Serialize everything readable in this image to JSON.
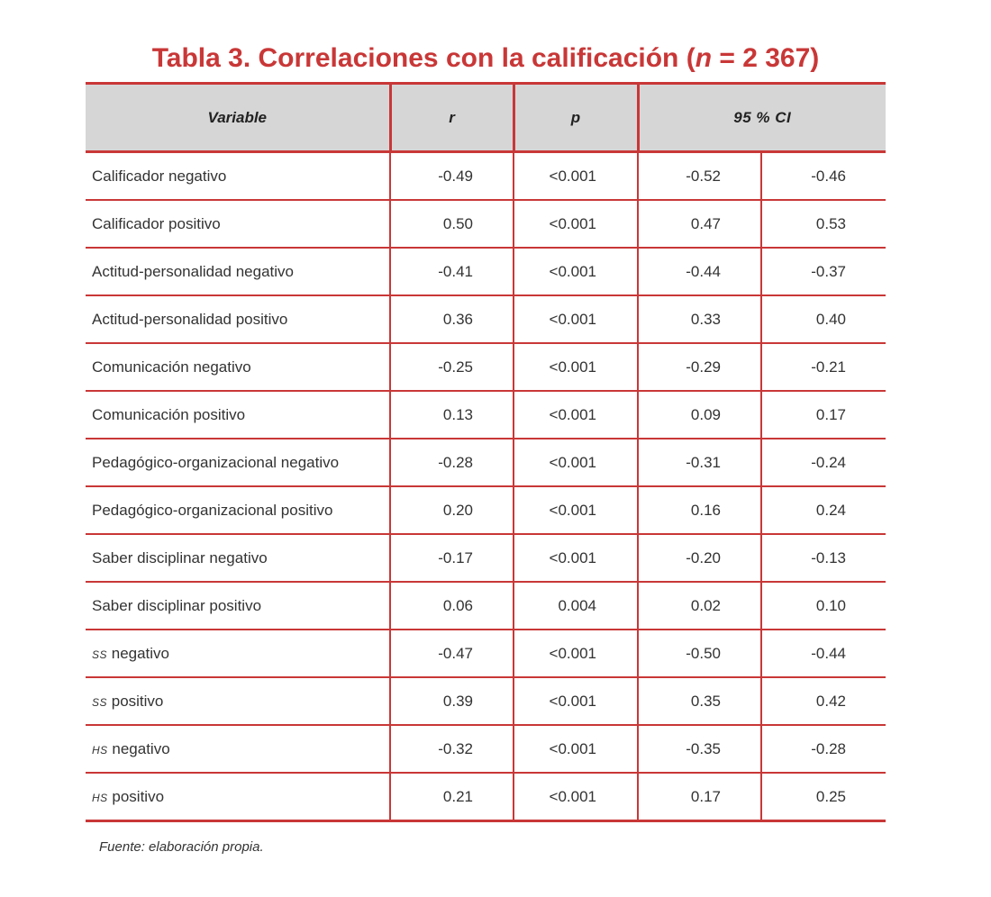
{
  "title": {
    "prefix": "Tabla 3. Correlaciones con la calificación (",
    "n_symbol": "n",
    "suffix": " = 2 367)"
  },
  "table": {
    "headers": {
      "variable": "Variable",
      "r": "r",
      "p": "p",
      "ci": "95 % CI"
    },
    "rows": [
      {
        "abbr": "",
        "label": "Calificador negativo",
        "r": "-0.49",
        "p": "<0.001",
        "ci_low": "-0.52",
        "ci_high": "-0.46"
      },
      {
        "abbr": "",
        "label": "Calificador positivo",
        "r": "0.50",
        "p": "<0.001",
        "ci_low": "0.47",
        "ci_high": "0.53"
      },
      {
        "abbr": "",
        "label": "Actitud-personalidad negativo",
        "r": "-0.41",
        "p": "<0.001",
        "ci_low": "-0.44",
        "ci_high": "-0.37"
      },
      {
        "abbr": "",
        "label": "Actitud-personalidad positivo",
        "r": "0.36",
        "p": "<0.001",
        "ci_low": "0.33",
        "ci_high": "0.40"
      },
      {
        "abbr": "",
        "label": "Comunicación negativo",
        "r": "-0.25",
        "p": "<0.001",
        "ci_low": "-0.29",
        "ci_high": "-0.21"
      },
      {
        "abbr": "",
        "label": "Comunicación positivo",
        "r": "0.13",
        "p": "<0.001",
        "ci_low": "0.09",
        "ci_high": "0.17"
      },
      {
        "abbr": "",
        "label": "Pedagógico-organizacional negativo",
        "r": "-0.28",
        "p": "<0.001",
        "ci_low": "-0.31",
        "ci_high": "-0.24"
      },
      {
        "abbr": "",
        "label": "Pedagógico-organizacional positivo",
        "r": "0.20",
        "p": "<0.001",
        "ci_low": "0.16",
        "ci_high": "0.24"
      },
      {
        "abbr": "",
        "label": "Saber disciplinar negativo",
        "r": "-0.17",
        "p": "<0.001",
        "ci_low": "-0.20",
        "ci_high": "-0.13"
      },
      {
        "abbr": "",
        "label": "Saber disciplinar positivo",
        "r": "0.06",
        "p": "0.004",
        "ci_low": "0.02",
        "ci_high": "0.10"
      },
      {
        "abbr": "SS",
        "label": " negativo",
        "r": "-0.47",
        "p": "<0.001",
        "ci_low": "-0.50",
        "ci_high": "-0.44"
      },
      {
        "abbr": "SS",
        "label": " positivo",
        "r": "0.39",
        "p": "<0.001",
        "ci_low": "0.35",
        "ci_high": "0.42"
      },
      {
        "abbr": "HS",
        "label": " negativo",
        "r": "-0.32",
        "p": "<0.001",
        "ci_low": "-0.35",
        "ci_high": "-0.28"
      },
      {
        "abbr": "HS",
        "label": " positivo",
        "r": "0.21",
        "p": "<0.001",
        "ci_low": "0.17",
        "ci_high": "0.25"
      }
    ]
  },
  "source": "Fuente: elaboración propia.",
  "colors": {
    "accent": "#c93737",
    "header_bg": "#d6d6d7"
  }
}
